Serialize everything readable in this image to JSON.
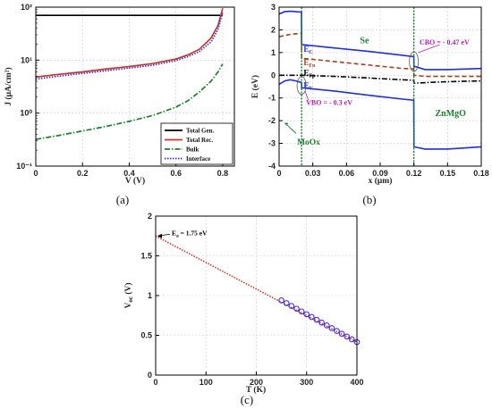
{
  "chart_data": [
    {
      "panel": "(a)",
      "type": "line",
      "xlabel": "V (V)",
      "ylabel": "J (μA/cm²)",
      "xlim": [
        0,
        0.85
      ],
      "ylim": [
        0.1,
        100
      ],
      "yscale": "log",
      "grid": true,
      "legend_position": "bottom-right",
      "x_ticks": [
        "0",
        "0.2",
        "0.4",
        "0.6",
        "0.8"
      ],
      "y_ticks": [
        "10⁻¹",
        "10⁰",
        "10¹",
        "10²"
      ],
      "x": [
        0,
        0.1,
        0.2,
        0.3,
        0.4,
        0.5,
        0.6,
        0.65,
        0.7,
        0.75,
        0.78,
        0.8
      ],
      "series": [
        {
          "name": "Total Gen.",
          "color": "#000000",
          "style": "solid",
          "values": [
            70,
            70,
            70,
            70,
            70,
            70,
            70,
            70,
            70,
            70,
            70,
            70
          ]
        },
        {
          "name": "Total Rec.",
          "color": "#c0392b",
          "style": "solid",
          "values": [
            4.8,
            5.4,
            6.0,
            6.8,
            7.6,
            8.6,
            10.5,
            12.5,
            16,
            26,
            45,
            95
          ]
        },
        {
          "name": "Bulk",
          "color": "#1e7d32",
          "style": "dashdot",
          "values": [
            0.32,
            0.38,
            0.46,
            0.56,
            0.7,
            0.9,
            1.3,
            1.7,
            2.5,
            4.0,
            6.0,
            8.5
          ]
        },
        {
          "name": "Interface",
          "color": "#3b2fd4",
          "style": "dotted",
          "values": [
            4.4,
            5.0,
            5.6,
            6.3,
            7.1,
            8.0,
            9.8,
            11.6,
            14.5,
            22,
            38,
            80
          ]
        }
      ]
    },
    {
      "panel": "(b)",
      "type": "line",
      "xlabel": "x (μm)",
      "ylabel": "E (eV)",
      "xlim": [
        0,
        0.18
      ],
      "ylim": [
        -4,
        3
      ],
      "grid": true,
      "x_ticks": [
        "0",
        "0.03",
        "0.06",
        "0.09",
        "0.12",
        "0.15",
        "0.18"
      ],
      "y_ticks": [
        "-4",
        "-3",
        "-2",
        "-1",
        "0",
        "1",
        "2",
        "3"
      ],
      "series": [
        {
          "name": "E_C",
          "color": "#1f2fd0",
          "style": "solid",
          "x": [
            0,
            0.005,
            0.01,
            0.015,
            0.0199,
            0.0201,
            0.05,
            0.08,
            0.11,
            0.1199,
            0.1201,
            0.13,
            0.15,
            0.18
          ],
          "values": [
            2.7,
            2.8,
            2.82,
            2.8,
            2.78,
            1.35,
            1.2,
            1.05,
            0.88,
            0.82,
            0.4,
            0.25,
            0.25,
            0.3
          ]
        },
        {
          "name": "E_Fn",
          "color": "#a0421d",
          "style": "dashed",
          "x": [
            0,
            0.01,
            0.0199,
            0.0201,
            0.05,
            0.08,
            0.11,
            0.1199,
            0.1201,
            0.13,
            0.15,
            0.18
          ],
          "values": [
            1.7,
            1.8,
            1.85,
            0.75,
            0.6,
            0.45,
            0.3,
            0.28,
            0.0,
            -0.05,
            -0.05,
            -0.05
          ]
        },
        {
          "name": "E_Fp",
          "color": "#000000",
          "style": "dashdot",
          "x": [
            0,
            0.01,
            0.0199,
            0.0201,
            0.05,
            0.08,
            0.11,
            0.1199,
            0.1201,
            0.14,
            0.16,
            0.18
          ],
          "values": [
            0,
            0,
            0,
            0.0,
            -0.05,
            -0.12,
            -0.2,
            -0.22,
            -0.35,
            -0.3,
            -0.27,
            -0.25
          ]
        },
        {
          "name": "E_V",
          "color": "#1f2fd0",
          "style": "solid",
          "x": [
            0,
            0.005,
            0.01,
            0.015,
            0.0199,
            0.0201,
            0.05,
            0.08,
            0.11,
            0.1199,
            0.1201,
            0.13,
            0.15,
            0.18
          ],
          "values": [
            -0.4,
            -0.25,
            -0.2,
            -0.25,
            -0.32,
            -0.55,
            -0.7,
            -0.88,
            -1.05,
            -1.1,
            -3.15,
            -3.25,
            -3.25,
            -3.15
          ]
        }
      ],
      "interfaces_x": [
        0.02,
        0.12
      ],
      "labels": {
        "ec": "E",
        "ec_sub": "C",
        "efn": "E",
        "efn_sub": "Fn",
        "efp": "E",
        "efp_sub": "Fp",
        "ev": "E",
        "ev_sub": "V",
        "se": "Se",
        "moox": "MoOx",
        "znmgo": "ZnMgO",
        "cbo": "CBO = - 0.47 eV",
        "vbo": "VBO = - 0.3 eV"
      }
    },
    {
      "panel": "(c)",
      "type": "scatter",
      "xlabel": "T (K)",
      "ylabel": "V",
      "ylabel_sub": "oc",
      "ylabel_unit": "(V)",
      "xlim": [
        0,
        400
      ],
      "ylim": [
        0,
        2
      ],
      "grid": true,
      "x_ticks": [
        "0",
        "100",
        "200",
        "300",
        "400"
      ],
      "y_ticks": [
        "0",
        "0.5",
        "1",
        "1.5",
        "2"
      ],
      "series": [
        {
          "name": "Voc",
          "color": "#4a2fd0",
          "marker": "circle",
          "x": [
            250,
            260,
            270,
            280,
            290,
            300,
            310,
            320,
            330,
            340,
            350,
            360,
            370,
            380,
            390,
            400
          ],
          "values": [
            0.94,
            0.905,
            0.87,
            0.835,
            0.8,
            0.765,
            0.73,
            0.695,
            0.66,
            0.625,
            0.59,
            0.555,
            0.52,
            0.485,
            0.45,
            0.415
          ]
        },
        {
          "name": "fit",
          "color": "#c0392b",
          "style": "dotted",
          "x": [
            0,
            400
          ],
          "values": [
            1.75,
            0.415
          ]
        }
      ],
      "annotation": {
        "text": "E",
        "sub": "a",
        "rest": " = 1.75 eV",
        "x": 0,
        "y": 1.75
      }
    }
  ],
  "panel_labels": [
    "(a)",
    "(b)",
    "(c)"
  ]
}
